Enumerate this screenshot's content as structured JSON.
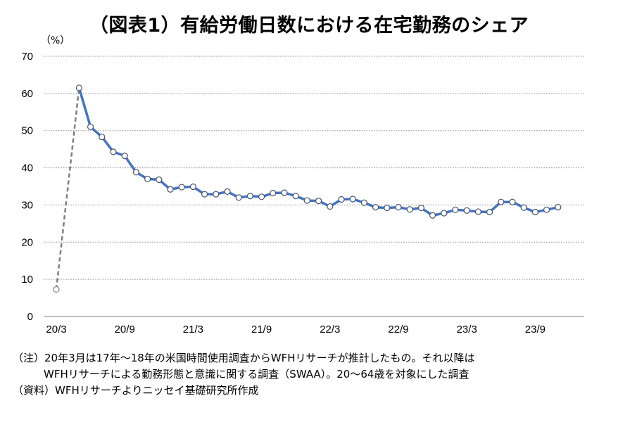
{
  "title": "（図表1）有給労働日数における在宅勤務のシェア",
  "notes": [
    "（注）20年3月は17年～18年の米国時間使用調査からWFHリサーチが推計したもの。それ以降は",
    "WFHリサーチによる勤務形態と意識に関する調査（SWAA）。20～64歳を対象にした調査",
    "（資料）WFHリサーチよりニッセイ基礎研究所作成"
  ],
  "chart_data": {
    "type": "line",
    "unit_label": "（%）",
    "ylim": [
      0,
      70
    ],
    "y_ticks": [
      0,
      10,
      20,
      30,
      40,
      50,
      60,
      70
    ],
    "x_tick_labels": [
      {
        "label": "20/3",
        "index": 0
      },
      {
        "label": "20/9",
        "index": 6
      },
      {
        "label": "21/3",
        "index": 12
      },
      {
        "label": "21/9",
        "index": 18
      },
      {
        "label": "22/3",
        "index": 24
      },
      {
        "label": "22/9",
        "index": 30
      },
      {
        "label": "23/3",
        "index": 36
      },
      {
        "label": "23/9",
        "index": 42
      }
    ],
    "grid": true,
    "gridline_style": "dotted",
    "x_count": 47,
    "first_point": {
      "index": 0,
      "value": 7.3,
      "note": "dashed"
    },
    "series": [
      {
        "start_index": 2,
        "color": "#4472C4",
        "values": [
          61.5,
          51.0,
          48.3,
          44.3,
          43.2,
          38.8,
          37.0,
          36.8,
          34.2,
          34.8,
          34.9,
          32.9,
          32.9,
          33.6,
          32.0,
          32.4,
          32.2,
          33.2,
          33.3,
          32.4,
          31.2,
          31.1,
          29.6,
          31.5,
          31.6,
          30.6,
          29.4,
          29.2,
          29.4,
          28.8,
          29.2,
          27.2,
          27.8,
          28.7,
          28.5,
          28.2,
          28.1,
          30.8,
          30.8,
          29.3,
          28.1,
          28.7,
          29.4
        ]
      }
    ]
  }
}
